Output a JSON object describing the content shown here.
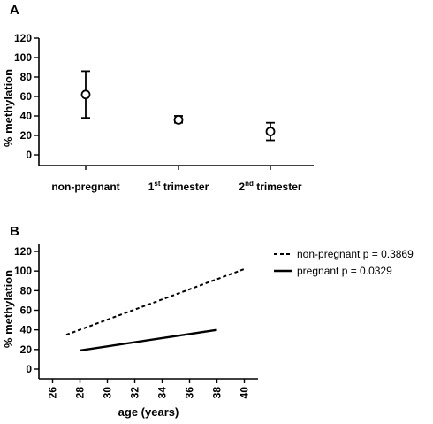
{
  "chart_data": [
    {
      "type": "scatter",
      "panel_label": "A",
      "ylabel": "% methylation",
      "ylim": [
        0,
        120
      ],
      "yticks": [
        "0",
        "20",
        "40",
        "60",
        "80",
        "100",
        "120"
      ],
      "categories": [
        {
          "main": "non-pregnant",
          "sup": ""
        },
        {
          "main": "1",
          "sup": "st",
          "rest": " trimester"
        },
        {
          "main": "2",
          "sup": "nd",
          "rest": " trimester"
        }
      ],
      "points": [
        {
          "mean": 62,
          "low": 38,
          "high": 86
        },
        {
          "mean": 36,
          "low": 33,
          "high": 40
        },
        {
          "mean": 24,
          "low": 15,
          "high": 33
        }
      ]
    },
    {
      "type": "line",
      "panel_label": "B",
      "xlabel": "age (years)",
      "ylabel": "% methylation",
      "xlim": [
        25,
        41
      ],
      "ylim": [
        0,
        120
      ],
      "xticks": [
        "26",
        "28",
        "30",
        "32",
        "34",
        "36",
        "38",
        "40"
      ],
      "yticks": [
        "0",
        "20",
        "40",
        "60",
        "80",
        "100",
        "120"
      ],
      "series": [
        {
          "name": "non-pregnant p = 0.3869",
          "style": "dashed",
          "x": [
            27,
            40
          ],
          "y": [
            35,
            102
          ]
        },
        {
          "name": "pregnant p = 0.0329",
          "style": "solid",
          "x": [
            28,
            38
          ],
          "y": [
            19,
            40
          ]
        }
      ]
    }
  ]
}
